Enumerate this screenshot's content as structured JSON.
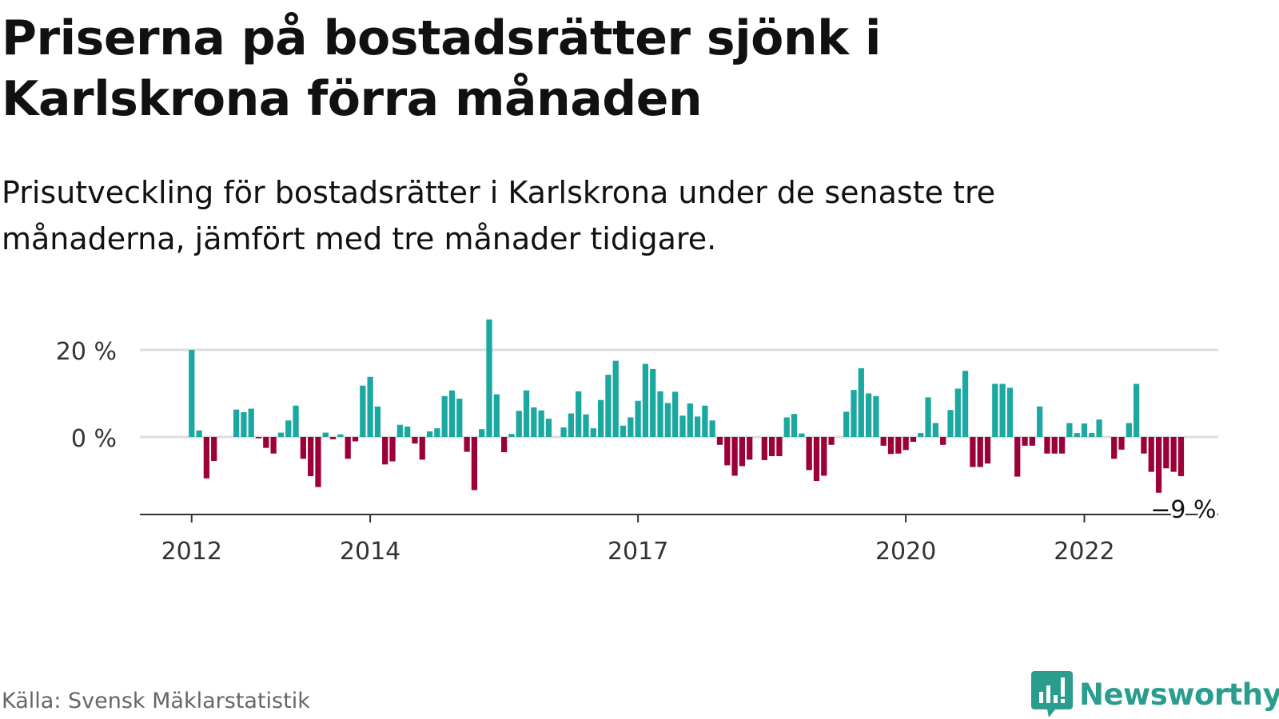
{
  "title": "Priserna på bostadsrätter sjönk i Karlskrona förra månaden",
  "subtitle": "Prisutveckling för bostadsrätter i Karlskrona under de senaste tre månaderna, jämfört med tre månader tidigare.",
  "source": "Källa: Svensk Mäklarstatistik",
  "logo": {
    "text": "Newsworthy",
    "icon": "bar-chart-speech-bubble-icon"
  },
  "colors": {
    "positive": "#1aa8a0",
    "negative": "#9c0038",
    "grid": "#dddddd",
    "axis": "#333333",
    "brand": "#2a9d8f"
  },
  "chart_data": {
    "type": "bar",
    "title": "",
    "xlabel": "",
    "ylabel": "",
    "y_ticks": [
      {
        "value": 0,
        "label": "0 %"
      },
      {
        "value": 20,
        "label": "20 %"
      }
    ],
    "x_ticks": [
      {
        "value": 2012.0,
        "label": "2012"
      },
      {
        "value": 2014.0,
        "label": "2014"
      },
      {
        "value": 2017.0,
        "label": "2017"
      },
      {
        "value": 2020.0,
        "label": "2020"
      },
      {
        "value": 2022.0,
        "label": "2022"
      }
    ],
    "ylim": [
      -17,
      30
    ],
    "x_start": 2011.42,
    "x_end": 2023.5,
    "grid": "horizontal",
    "bars_per_year": 12,
    "first_bar": 2012.0,
    "values": [
      20,
      1.5,
      -9.5,
      -5.5,
      0,
      0,
      6.3,
      5.7,
      6.5,
      -0.3,
      -2.5,
      -3.8,
      1,
      3.8,
      7.2,
      -5,
      -9,
      -11.5,
      1,
      -0.5,
      0.6,
      -5,
      -1,
      11.8,
      13.8,
      7,
      -6.3,
      -5.6,
      2.8,
      2.4,
      -1.5,
      -5.2,
      1.3,
      2,
      9.4,
      10.7,
      8.8,
      -3.4,
      -12.2,
      1.8,
      27,
      9.8,
      -3.5,
      0.7,
      6,
      10.7,
      6.8,
      6.1,
      4.2,
      0,
      2.2,
      5.4,
      10.5,
      5.2,
      2,
      8.5,
      14.3,
      17.5,
      2.6,
      4.5,
      8.3,
      16.8,
      15.6,
      10.5,
      7.8,
      10.4,
      4.9,
      7.7,
      4.7,
      7.2,
      3.8,
      -1.8,
      -6.5,
      -8.9,
      -6.7,
      -5.2,
      0,
      -5.3,
      -4.4,
      -4.4,
      4.5,
      5.3,
      0.8,
      -7.6,
      -10.1,
      -8.9,
      -1.8,
      0,
      5.8,
      10.8,
      15.8,
      10,
      9.4,
      -2,
      -3.9,
      -3.8,
      -3,
      -1.1,
      0.9,
      9.1,
      3.2,
      -1.8,
      6.2,
      11.1,
      15.2,
      -6.9,
      -6.9,
      -6.1,
      12.2,
      12.2,
      11.3,
      -9.1,
      -2,
      -2,
      7,
      -3.8,
      -3.8,
      -3.8,
      3.2,
      0.9,
      3.1,
      0.9,
      4,
      0,
      -5,
      -2.9,
      3.2,
      12.2,
      -3.8,
      -8,
      -12.8,
      -7.2,
      -8,
      -9
    ],
    "annotation": {
      "label": "−9 %",
      "value": -9
    }
  }
}
